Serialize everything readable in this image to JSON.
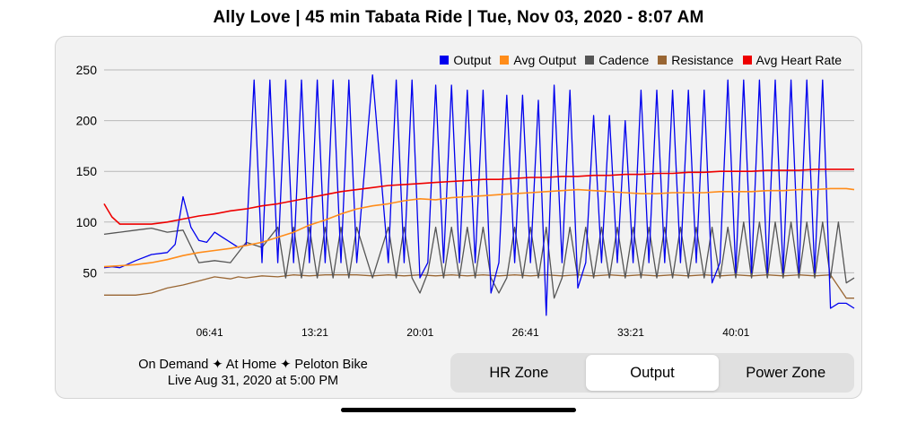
{
  "header": {
    "title": "Ally Love  |  45 min Tabata Ride  |  Tue, Nov 03, 2020 - 8:07 AM"
  },
  "footer": {
    "line1": "On Demand ✦ At Home ✦ Peloton Bike",
    "line2": "Live  Aug 31, 2020 at 5:00 PM"
  },
  "tabs": [
    {
      "label": "HR Zone",
      "active": false
    },
    {
      "label": "Output",
      "active": true
    },
    {
      "label": "Power Zone",
      "active": false
    }
  ],
  "chart_data": {
    "type": "line",
    "title": "",
    "xlabel": "",
    "ylabel": "",
    "x_unit": "minutes",
    "xlim": [
      0,
      47.5
    ],
    "ylim": [
      0,
      265
    ],
    "yticks": [
      50,
      100,
      150,
      200,
      250
    ],
    "ytick_labels": [
      "50",
      "100",
      "150",
      "200",
      "250"
    ],
    "xticks": [
      6.683,
      13.35,
      20.017,
      26.683,
      33.35,
      40.017
    ],
    "xtick_labels": [
      "06:41",
      "13:21",
      "20:01",
      "26:41",
      "33:21",
      "40:01"
    ],
    "grid": true,
    "legend_position": "top-right",
    "series": [
      {
        "name": "Output",
        "color": "#0000ee",
        "x": [
          0,
          0.5,
          1,
          2,
          3,
          4,
          4.5,
          5,
          5.5,
          6,
          6.5,
          7,
          7.5,
          8,
          8.5,
          9,
          9.5,
          10,
          10.5,
          11,
          11.5,
          12,
          12.5,
          13,
          13.5,
          14,
          14.5,
          15,
          15.5,
          16,
          17,
          18,
          18.5,
          19,
          19.5,
          20,
          20.5,
          21,
          21.5,
          22,
          22.5,
          23,
          23.5,
          24,
          24.5,
          25,
          25.5,
          26,
          26.5,
          27,
          27.5,
          28,
          28.5,
          29,
          29.5,
          30,
          30.5,
          31,
          31.5,
          32,
          32.5,
          33,
          33.5,
          34,
          34.5,
          35,
          35.5,
          36,
          36.5,
          37,
          37.5,
          38,
          38.5,
          39,
          39.5,
          40,
          40.5,
          41,
          41.5,
          42,
          42.5,
          43,
          43.5,
          44,
          44.5,
          45,
          45.5,
          46,
          46.5,
          47,
          47.5
        ],
        "y": [
          55,
          56,
          55,
          62,
          68,
          70,
          78,
          125,
          95,
          82,
          80,
          90,
          85,
          80,
          75,
          78,
          240,
          60,
          240,
          60,
          240,
          60,
          240,
          60,
          240,
          60,
          240,
          60,
          240,
          60,
          245,
          60,
          240,
          60,
          240,
          45,
          60,
          235,
          60,
          235,
          60,
          230,
          60,
          230,
          30,
          60,
          225,
          60,
          225,
          60,
          220,
          8,
          235,
          60,
          230,
          35,
          60,
          205,
          60,
          205,
          60,
          200,
          60,
          230,
          60,
          230,
          60,
          230,
          60,
          230,
          60,
          230,
          40,
          60,
          240,
          50,
          240,
          50,
          240,
          50,
          240,
          50,
          240,
          50,
          240,
          50,
          240,
          15,
          20,
          20,
          15
        ]
      },
      {
        "name": "Avg Output",
        "color": "#ff8c1a",
        "x": [
          0,
          1,
          2,
          3,
          4,
          5,
          6,
          7,
          8,
          9,
          10,
          11,
          12,
          13,
          14,
          15,
          16,
          17,
          18,
          19,
          20,
          21,
          22,
          23,
          24,
          25,
          26,
          27,
          28,
          29,
          30,
          31,
          32,
          33,
          34,
          35,
          36,
          37,
          38,
          39,
          40,
          41,
          42,
          43,
          44,
          45,
          46,
          47,
          47.5
        ],
        "y": [
          56,
          57,
          58,
          60,
          63,
          67,
          70,
          72,
          74,
          77,
          80,
          85,
          90,
          97,
          102,
          108,
          113,
          116,
          118,
          121,
          123,
          122,
          124,
          125,
          126,
          127,
          128,
          129,
          130,
          131,
          132,
          131,
          130,
          129,
          128,
          128,
          129,
          129,
          129,
          130,
          130,
          130,
          131,
          131,
          132,
          132,
          133,
          133,
          132
        ]
      },
      {
        "name": "Cadence",
        "color": "#555555",
        "x": [
          0,
          1,
          2,
          3,
          4,
          5,
          6,
          7,
          8,
          9,
          10,
          11,
          11.5,
          12,
          12.5,
          13,
          13.5,
          14,
          14.5,
          15,
          15.5,
          16,
          17,
          18,
          18.5,
          19,
          19.5,
          20,
          20.5,
          21,
          21.5,
          22,
          22.5,
          23,
          23.5,
          24,
          24.5,
          25,
          25.5,
          26,
          26.5,
          27,
          27.5,
          28,
          28.5,
          29,
          29.5,
          30,
          30.5,
          31,
          31.5,
          32,
          32.5,
          33,
          33.5,
          34,
          34.5,
          35,
          35.5,
          36,
          36.5,
          37,
          37.5,
          38,
          38.5,
          39,
          39.5,
          40,
          40.5,
          41,
          41.5,
          42,
          42.5,
          43,
          43.5,
          44,
          44.5,
          45,
          45.5,
          46,
          46.5,
          47,
          47.5
        ],
        "y": [
          88,
          90,
          92,
          94,
          90,
          92,
          60,
          62,
          60,
          80,
          75,
          95,
          45,
          95,
          45,
          95,
          45,
          95,
          45,
          95,
          45,
          95,
          45,
          95,
          45,
          95,
          45,
          30,
          50,
          95,
          45,
          95,
          45,
          95,
          45,
          95,
          45,
          30,
          45,
          95,
          45,
          95,
          45,
          95,
          25,
          45,
          95,
          45,
          95,
          45,
          95,
          45,
          95,
          45,
          95,
          45,
          95,
          45,
          95,
          45,
          95,
          45,
          95,
          45,
          95,
          45,
          95,
          45,
          100,
          45,
          100,
          45,
          100,
          45,
          100,
          45,
          100,
          45,
          100,
          45,
          100,
          40,
          45
        ]
      },
      {
        "name": "Resistance",
        "color": "#996633",
        "x": [
          0,
          1,
          2,
          3,
          4,
          5,
          6,
          7,
          8,
          8.5,
          9,
          10,
          11,
          12,
          13,
          14,
          15,
          16,
          17,
          18,
          19,
          20,
          21,
          22,
          23,
          24,
          25,
          26,
          27,
          28,
          29,
          30,
          31,
          32,
          33,
          34,
          35,
          36,
          37,
          38,
          39,
          40,
          41,
          42,
          43,
          44,
          45,
          46,
          47,
          47.5
        ],
        "y": [
          28,
          28,
          28,
          30,
          35,
          38,
          42,
          46,
          44,
          46,
          45,
          47,
          46,
          48,
          47,
          48,
          48,
          48,
          47,
          48,
          47,
          48,
          47,
          48,
          47,
          48,
          47,
          48,
          47,
          48,
          47,
          48,
          47,
          48,
          47,
          48,
          47,
          48,
          47,
          48,
          47,
          48,
          47,
          48,
          47,
          48,
          47,
          48,
          25,
          25
        ]
      },
      {
        "name": "Avg Heart Rate",
        "color": "#ee0000",
        "x": [
          0,
          0.5,
          1,
          2,
          3,
          4,
          5,
          6,
          7,
          8,
          9,
          10,
          11,
          12,
          13,
          14,
          15,
          16,
          17,
          18,
          19,
          20,
          21,
          22,
          23,
          24,
          25,
          26,
          27,
          28,
          29,
          30,
          31,
          32,
          33,
          34,
          35,
          36,
          37,
          38,
          39,
          40,
          41,
          42,
          43,
          44,
          45,
          46,
          47,
          47.5
        ],
        "y": [
          118,
          105,
          98,
          98,
          98,
          100,
          103,
          106,
          108,
          111,
          113,
          116,
          118,
          121,
          124,
          127,
          130,
          132,
          134,
          136,
          137,
          138,
          139,
          140,
          141,
          142,
          142,
          143,
          144,
          144,
          145,
          145,
          146,
          146,
          147,
          147,
          148,
          148,
          149,
          149,
          150,
          150,
          150,
          151,
          151,
          151,
          152,
          152,
          152,
          152
        ]
      }
    ]
  }
}
